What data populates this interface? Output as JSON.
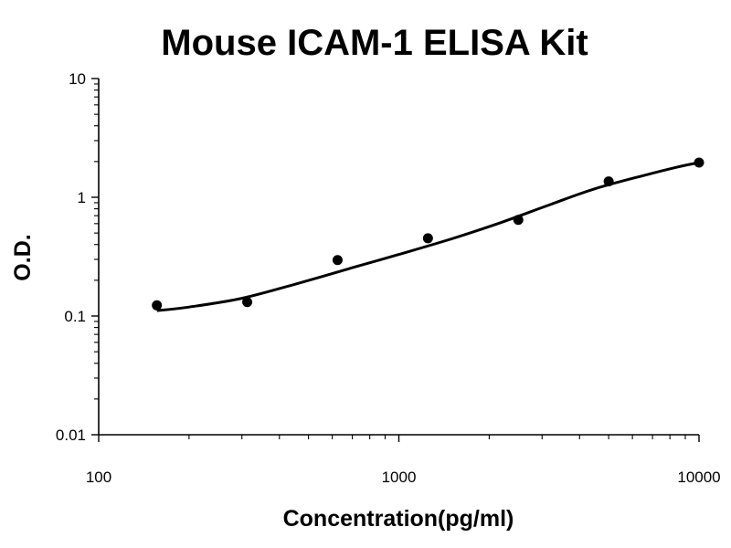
{
  "chart_data": {
    "type": "scatter",
    "title": "Mouse ICAM-1 ELISA Kit",
    "xlabel": "Concentration(pg/ml)",
    "ylabel": "O.D.",
    "x_scale": "log",
    "y_scale": "log",
    "xlim": [
      100,
      10000
    ],
    "ylim": [
      0.01,
      10
    ],
    "x_ticks": [
      {
        "value": 100,
        "label": "100"
      },
      {
        "value": 1000,
        "label": "1000"
      },
      {
        "value": 10000,
        "label": "10000"
      }
    ],
    "y_ticks": [
      {
        "value": 10,
        "label": "10"
      },
      {
        "value": 1,
        "label": "1"
      },
      {
        "value": 0.1,
        "label": "0.1"
      },
      {
        "value": 0.01,
        "label": "0.01"
      }
    ],
    "grid": false,
    "legend": "none",
    "colors": {
      "marks": "#000000",
      "background": "#ffffff"
    },
    "series": [
      {
        "points": [
          {
            "x": 156.25,
            "y": 0.123
          },
          {
            "x": 312.5,
            "y": 0.131
          },
          {
            "x": 625,
            "y": 0.296
          },
          {
            "x": 1250,
            "y": 0.452
          },
          {
            "x": 2500,
            "y": 0.645
          },
          {
            "x": 5000,
            "y": 1.36
          },
          {
            "x": 10000,
            "y": 1.96
          }
        ]
      }
    ],
    "fit_curve": [
      {
        "x": 156.25,
        "y": 0.111
      },
      {
        "x": 200,
        "y": 0.119
      },
      {
        "x": 300,
        "y": 0.141
      },
      {
        "x": 450,
        "y": 0.185
      },
      {
        "x": 700,
        "y": 0.255
      },
      {
        "x": 1000,
        "y": 0.33
      },
      {
        "x": 1500,
        "y": 0.447
      },
      {
        "x": 2200,
        "y": 0.616
      },
      {
        "x": 3200,
        "y": 0.87
      },
      {
        "x": 4500,
        "y": 1.18
      },
      {
        "x": 6500,
        "y": 1.52
      },
      {
        "x": 8500,
        "y": 1.8
      },
      {
        "x": 10000,
        "y": 1.96
      }
    ]
  }
}
